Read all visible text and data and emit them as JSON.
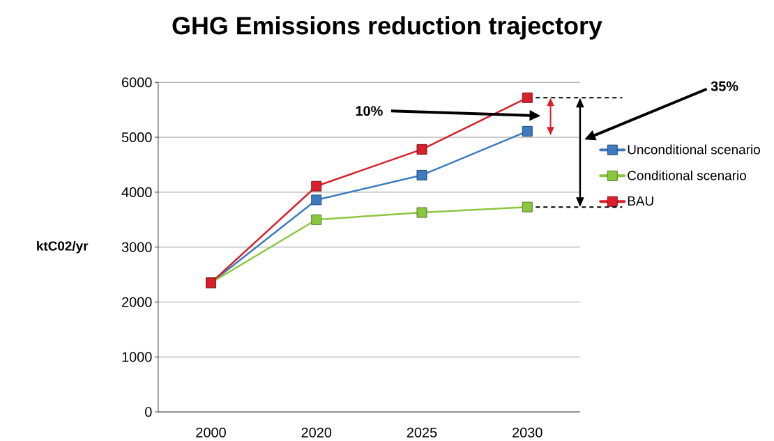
{
  "chart_data": {
    "type": "line",
    "title": "GHG Emissions reduction trajectory",
    "ylabel": "ktC02/yr",
    "categories": [
      "2000",
      "2020",
      "2025",
      "2030"
    ],
    "series": [
      {
        "name": "Unconditional scenario",
        "color": "#3d7abf",
        "values": [
          2350,
          3860,
          4310,
          5110
        ]
      },
      {
        "name": "Conditional scenario",
        "color": "#8cc63f",
        "values": [
          2350,
          3500,
          3630,
          3730
        ]
      },
      {
        "name": "BAU",
        "color": "#d7202a",
        "values": [
          2350,
          4110,
          4780,
          5720
        ]
      }
    ],
    "ylim": [
      0,
      6000
    ],
    "yticks": [
      0,
      1000,
      2000,
      3000,
      4000,
      5000,
      6000
    ],
    "grid": "y",
    "legend": "right",
    "marker": "square",
    "line_style": "solid",
    "ref_lines": [
      {
        "axis": "y",
        "value": 5720,
        "line_style": "dashed",
        "color": "#000000"
      },
      {
        "axis": "y",
        "value": 3730,
        "line_style": "dashed",
        "color": "#000000"
      }
    ],
    "annotations": [
      "10%",
      "35%"
    ]
  }
}
